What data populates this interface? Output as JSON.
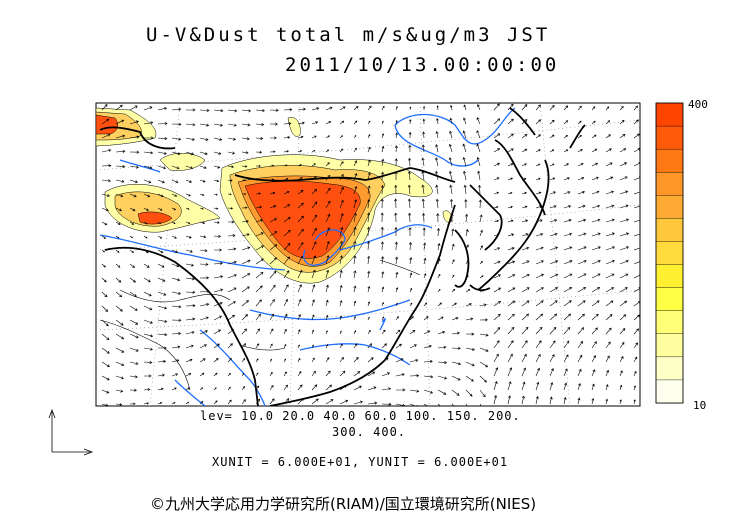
{
  "title_line1": "U-V&Dust total m/s&ug/m3 JST",
  "title_line2": "2011/10/13.00:00:00",
  "levels_line1": "lev= 10.0 20.0 40.0 60.0 100. 150. 200.",
  "levels_line2": "300. 400.",
  "units_text": "XUNIT = 6.000E+01, YUNIT = 6.000E+01",
  "credit": "©九州大学応用力学研究所(RIAM)/国立環境研究所(NIES)",
  "colorbar": {
    "max_label": "400",
    "min_label": "10",
    "colors": [
      "#ff4500",
      "#ff5a0a",
      "#ff7814",
      "#ff9628",
      "#ffaa32",
      "#ffc83c",
      "#ffdc3c",
      "#fff032",
      "#ffff46",
      "#ffff78",
      "#ffffa0",
      "#ffffc8",
      "#fffff0"
    ]
  },
  "colors": {
    "coast": "#000000",
    "river": "#1e6eff",
    "dust_high": "#ff5010",
    "dust_mid": "#ffc040",
    "dust_low": "#ffffa8"
  },
  "icons": {
    "axis_reference": "axis-arrows-icon"
  }
}
